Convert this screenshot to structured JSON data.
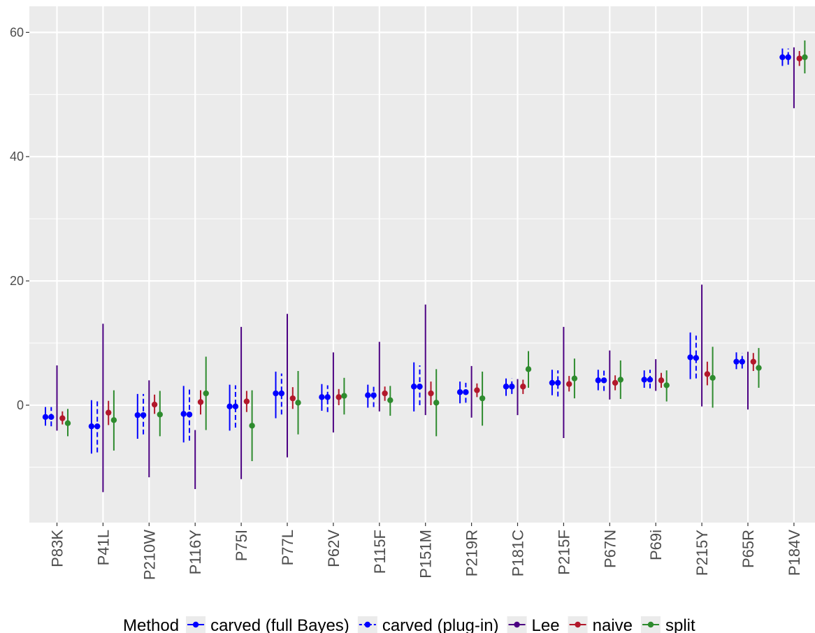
{
  "chart_data": {
    "type": "scatter",
    "subtype": "point-with-interval",
    "title": "",
    "xlabel": "",
    "ylabel": "",
    "ylim": [
      -18.9,
      64.2
    ],
    "yticks": [
      0,
      20,
      40,
      60
    ],
    "grid": true,
    "legend": {
      "title": "Method",
      "position": "bottom"
    },
    "categories": [
      "P83K",
      "P41L",
      "P210W",
      "P116Y",
      "P75I",
      "P77L",
      "P62V",
      "P115F",
      "P151M",
      "P219R",
      "P181C",
      "P215F",
      "P67N",
      "P69i",
      "P215Y",
      "P65R",
      "P184V"
    ],
    "series": [
      {
        "name": "carved (full Bayes)",
        "color": "#0000ff",
        "linetype": "solid",
        "estimate": [
          -1.9,
          -3.4,
          -1.6,
          -1.4,
          -0.2,
          1.9,
          1.3,
          1.6,
          3.0,
          2.1,
          3.0,
          3.6,
          4.0,
          4.1,
          7.7,
          7.0,
          56.0
        ],
        "lower": [
          -3.3,
          -7.8,
          -5.4,
          -6.0,
          -4.1,
          -2.1,
          -0.9,
          -0.4,
          -1.0,
          0.3,
          1.5,
          1.6,
          2.4,
          2.8,
          4.2,
          5.8,
          54.6
        ],
        "upper": [
          -0.3,
          0.8,
          1.8,
          3.1,
          3.3,
          5.4,
          3.4,
          3.3,
          6.9,
          3.8,
          4.3,
          5.7,
          5.7,
          5.6,
          11.7,
          8.5,
          57.4
        ]
      },
      {
        "name": "carved (plug-in)",
        "color": "#0000ff",
        "linetype": "dashed",
        "estimate": [
          -1.9,
          -3.4,
          -1.6,
          -1.5,
          -0.2,
          1.9,
          1.3,
          1.6,
          3.0,
          2.1,
          3.0,
          3.6,
          4.0,
          4.1,
          7.6,
          7.0,
          56.0
        ],
        "lower": [
          -3.4,
          -7.6,
          -4.7,
          -5.7,
          -3.6,
          -1.5,
          -1.1,
          -0.3,
          0.0,
          0.4,
          1.8,
          1.4,
          2.3,
          2.7,
          4.3,
          5.9,
          54.8
        ],
        "upper": [
          -0.3,
          0.9,
          1.8,
          2.7,
          3.2,
          5.1,
          3.2,
          3.2,
          6.4,
          3.6,
          4.3,
          5.6,
          5.7,
          5.7,
          11.2,
          8.4,
          57.4
        ]
      },
      {
        "name": "Lee",
        "color": "#4b0082",
        "linetype": "solid",
        "estimate": [
          null,
          null,
          null,
          null,
          null,
          null,
          null,
          null,
          null,
          null,
          null,
          null,
          null,
          null,
          null,
          null,
          null
        ],
        "lower": [
          -4.1,
          -14.0,
          -11.6,
          -13.5,
          -11.9,
          -8.4,
          -4.4,
          -1.0,
          -1.6,
          -2.0,
          -1.6,
          -5.3,
          0.9,
          2.3,
          -0.2,
          -0.7,
          47.8
        ],
        "upper": [
          6.4,
          13.1,
          4.0,
          -4.0,
          12.6,
          14.7,
          8.5,
          10.2,
          16.2,
          6.3,
          4.2,
          12.6,
          8.8,
          7.4,
          19.4,
          8.6,
          57.6
        ]
      },
      {
        "name": "naive",
        "color": "#b2182b",
        "linetype": "solid",
        "estimate": [
          -2.1,
          -1.2,
          0.1,
          0.5,
          0.6,
          1.1,
          1.3,
          1.9,
          1.9,
          2.4,
          3.0,
          3.4,
          3.6,
          4.0,
          5.0,
          7.0,
          55.8
        ],
        "lower": [
          -3.1,
          -3.2,
          -1.4,
          -1.5,
          -1.1,
          -0.6,
          0.0,
          0.7,
          0.0,
          1.3,
          1.8,
          2.2,
          2.4,
          2.8,
          3.2,
          5.5,
          54.6
        ],
        "upper": [
          -1.0,
          0.7,
          1.7,
          2.4,
          2.3,
          2.9,
          2.6,
          3.0,
          3.8,
          3.5,
          4.1,
          4.7,
          4.8,
          5.2,
          7.0,
          8.4,
          57.0
        ]
      },
      {
        "name": "split",
        "color": "#2e8b2e",
        "linetype": "solid",
        "estimate": [
          -2.9,
          -2.4,
          -1.5,
          1.9,
          -3.3,
          0.4,
          1.5,
          0.8,
          0.4,
          1.1,
          5.8,
          4.3,
          4.1,
          3.2,
          4.4,
          6.0,
          56.0
        ],
        "lower": [
          -5.0,
          -7.3,
          -5.0,
          -4.0,
          -9.0,
          -4.7,
          -1.5,
          -1.7,
          -5.0,
          -3.3,
          2.8,
          1.1,
          1.0,
          0.6,
          -0.4,
          2.8,
          53.4
        ],
        "upper": [
          -0.6,
          2.4,
          2.3,
          7.8,
          2.4,
          5.5,
          4.4,
          3.1,
          5.8,
          5.4,
          8.7,
          7.5,
          7.2,
          5.6,
          9.4,
          9.2,
          58.7
        ]
      }
    ]
  }
}
